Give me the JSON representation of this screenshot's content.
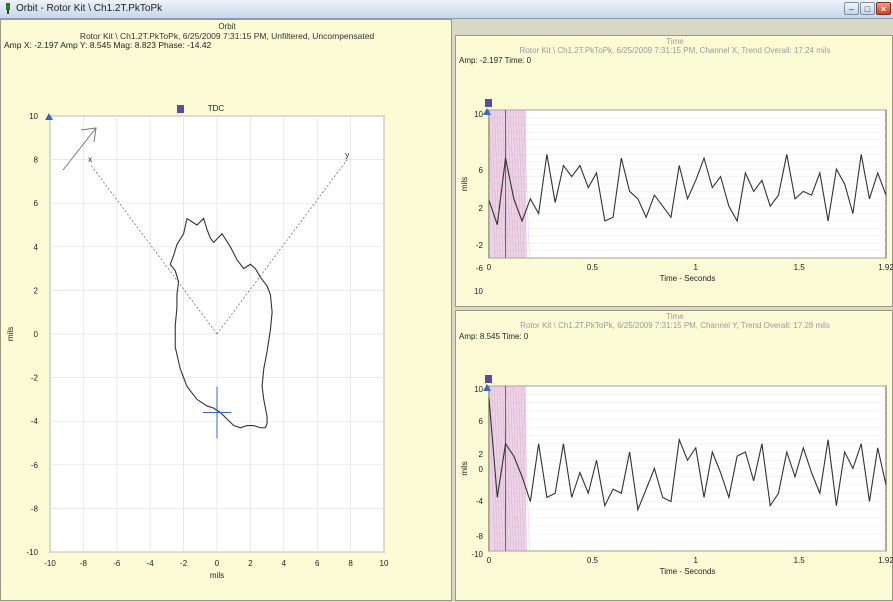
{
  "window": {
    "title": "Orbit - Rotor Kit \\ Ch1.2T.PkToPk"
  },
  "orbit_panel": {
    "title": "Orbit",
    "subtitle": "Rotor Kit \\ Ch1.2T.PkToPk, 6/25/2009 7:31:15 PM, Unfiltered, Uncompensated",
    "readout": "Amp X: -2.197  Amp Y: 8.545  Mag: 8.823  Phase: -14.42",
    "tdc_label": "TDC",
    "x_axis_label": "mils",
    "y_axis_label": "mils",
    "x_ticks": [
      "-10",
      "-8",
      "-6",
      "-4",
      "-2",
      "0",
      "2",
      "4",
      "6",
      "8",
      "10"
    ],
    "y_ticks": [
      "10",
      "8",
      "6",
      "4",
      "2",
      "0",
      "-2",
      "-4",
      "-6",
      "-8",
      "-10"
    ],
    "probe_x_label": "x",
    "probe_y_label": "y"
  },
  "time_x_panel": {
    "title": "Time",
    "subtitle": "Rotor Kit \\ Ch1.2T.PkToPk, 6/25/2009 7:31:15 PM, Channel X, Trend Overall: 17.24 mils",
    "readout": "Amp: -2.197  Time: 0",
    "x_axis_label": "Time - Seconds",
    "y_axis_label": "mils",
    "x_ticks": [
      "0",
      "0.5",
      "1",
      "1.5",
      "1.92"
    ],
    "y_ticks": [
      "10",
      "6",
      "2",
      "-2",
      "-6",
      "10"
    ]
  },
  "time_y_panel": {
    "title": "Time",
    "subtitle": "Rotor Kit \\ Ch1.2T.PkToPk, 6/25/2009 7:31:15 PM, Channel Y, Trend Overall: 17.28 mils",
    "readout": "Amp: 8.545  Time: 0",
    "x_axis_label": "Time - Seconds",
    "y_axis_label": "mils",
    "x_ticks": [
      "0",
      "0.5",
      "1",
      "1.5",
      "1.92"
    ],
    "y_ticks": [
      "10",
      "6",
      "2",
      "0",
      "-4",
      "-8",
      "-10"
    ]
  },
  "colors": {
    "panel_bg": "#fbfbd6",
    "trace": "#333333",
    "cursor": "#3a66c8",
    "highlight": "#d8a0c8",
    "marker": "#5a4aa0"
  },
  "chart_data": [
    {
      "type": "line",
      "name": "orbit",
      "title": "Orbit",
      "xlabel": "mils",
      "ylabel": "mils",
      "xlim": [
        -10,
        10
      ],
      "ylim": [
        -10,
        10
      ],
      "grid": true,
      "x": [
        -1.8,
        -1.2,
        -0.8,
        -0.6,
        -0.4,
        -0.2,
        0.3,
        0.8,
        1.2,
        1.6,
        2.0,
        2.3,
        2.6,
        3.0,
        3.2,
        3.3,
        3.2,
        3.0,
        2.8,
        2.7,
        2.8,
        2.9,
        3.0,
        3.0,
        2.9,
        2.6,
        2.2,
        1.8,
        1.4,
        1.0,
        0.6,
        0.2,
        -0.2,
        -0.6,
        -1.2,
        -1.8,
        -2.2,
        -2.5,
        -2.5,
        -2.4,
        -2.4,
        -2.3,
        -2.5,
        -2.8,
        -2.6,
        -2.4,
        -2.0,
        -1.8
      ],
      "y": [
        5.3,
        5.0,
        5.3,
        4.8,
        4.4,
        4.2,
        4.6,
        4.0,
        3.4,
        3.0,
        3.2,
        3.0,
        2.6,
        2.2,
        1.8,
        1.0,
        0.2,
        -0.8,
        -1.6,
        -2.4,
        -3.0,
        -3.4,
        -3.8,
        -4.1,
        -4.3,
        -4.3,
        -4.2,
        -4.2,
        -4.3,
        -4.2,
        -3.9,
        -3.6,
        -3.4,
        -3.3,
        -3.0,
        -2.4,
        -1.6,
        -0.6,
        0.4,
        1.2,
        1.8,
        2.4,
        2.9,
        3.2,
        3.6,
        4.1,
        4.6,
        5.3
      ]
    },
    {
      "type": "line",
      "name": "channel-x-time",
      "title": "Time",
      "xlabel": "Time - Seconds",
      "ylabel": "mils",
      "xlim": [
        0,
        1.92
      ],
      "ylim": [
        -10,
        10
      ],
      "grid": true,
      "x": [
        0,
        0.04,
        0.08,
        0.12,
        0.16,
        0.2,
        0.24,
        0.28,
        0.32,
        0.36,
        0.4,
        0.44,
        0.48,
        0.52,
        0.56,
        0.6,
        0.64,
        0.68,
        0.72,
        0.76,
        0.8,
        0.84,
        0.88,
        0.92,
        0.96,
        1.0,
        1.04,
        1.08,
        1.12,
        1.16,
        1.2,
        1.24,
        1.28,
        1.32,
        1.36,
        1.4,
        1.44,
        1.48,
        1.52,
        1.56,
        1.6,
        1.64,
        1.68,
        1.72,
        1.76,
        1.8,
        1.84,
        1.88,
        1.92
      ],
      "values": [
        -2.2,
        -5.5,
        3.5,
        -2.0,
        -5.0,
        -2.0,
        -4.0,
        4.0,
        -2.5,
        2.5,
        1.0,
        2.5,
        -0.5,
        1.5,
        -5.0,
        -4.5,
        3.5,
        -1.0,
        -2.0,
        -4.5,
        -1.5,
        -3.0,
        -4.5,
        2.5,
        -2.0,
        0.5,
        3.5,
        -0.5,
        1.0,
        -3.0,
        -5.0,
        1.5,
        -1.0,
        0.5,
        -3.0,
        -1.5,
        4.0,
        -2.0,
        -1.0,
        -1.5,
        1.5,
        -5.0,
        2.0,
        0.0,
        -4.0,
        4.0,
        -2.0,
        1.5,
        -1.5
      ]
    },
    {
      "type": "line",
      "name": "channel-y-time",
      "title": "Time",
      "xlabel": "Time - Seconds",
      "ylabel": "mils",
      "xlim": [
        0,
        1.92
      ],
      "ylim": [
        -10,
        10
      ],
      "grid": true,
      "x": [
        0,
        0.04,
        0.08,
        0.12,
        0.16,
        0.2,
        0.24,
        0.28,
        0.32,
        0.36,
        0.4,
        0.44,
        0.48,
        0.52,
        0.56,
        0.6,
        0.64,
        0.68,
        0.72,
        0.76,
        0.8,
        0.84,
        0.88,
        0.92,
        0.96,
        1.0,
        1.04,
        1.08,
        1.12,
        1.16,
        1.2,
        1.24,
        1.28,
        1.32,
        1.36,
        1.4,
        1.44,
        1.48,
        1.52,
        1.56,
        1.6,
        1.64,
        1.68,
        1.72,
        1.76,
        1.8,
        1.84,
        1.88,
        1.92
      ],
      "values": [
        8.5,
        -3.5,
        3.0,
        1.5,
        -1.0,
        -4.0,
        3.0,
        -3.5,
        -3.0,
        3.0,
        -3.5,
        -0.5,
        -3.0,
        1.0,
        -4.5,
        -2.5,
        -3.0,
        2.0,
        -5.0,
        -2.5,
        0.0,
        -3.5,
        -4.0,
        3.5,
        1.0,
        2.5,
        -3.5,
        2.0,
        -0.5,
        -3.5,
        1.5,
        2.0,
        -1.5,
        3.0,
        -4.5,
        -3.0,
        2.0,
        -1.0,
        2.5,
        -0.5,
        -3.0,
        3.5,
        -4.5,
        2.0,
        0.0,
        3.0,
        -4.0,
        2.5,
        -2.0
      ]
    }
  ]
}
